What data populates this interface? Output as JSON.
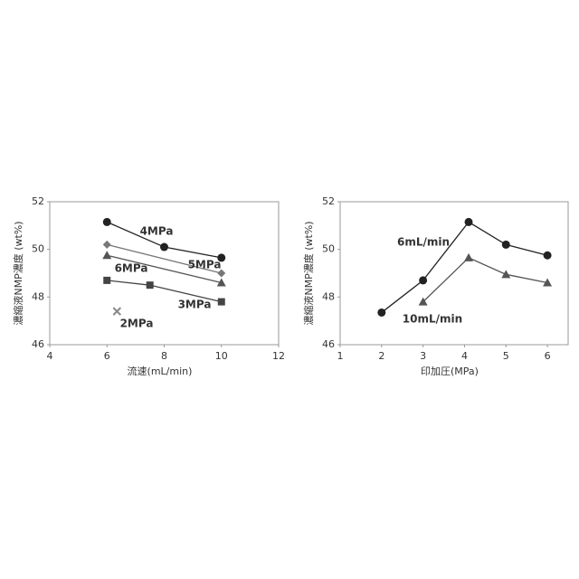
{
  "chart_data": [
    {
      "type": "line",
      "x_label": "流速(mL/min)",
      "y_label": "濃縮液NMP濃度 (wt%)",
      "xlim": [
        4,
        12
      ],
      "xticks": [
        4,
        6,
        8,
        10,
        12
      ],
      "ylim": [
        46,
        52
      ],
      "yticks": [
        46,
        48,
        50,
        52
      ],
      "series": [
        {
          "name": "4MPa",
          "color": "#222222",
          "marker": "circle",
          "x": [
            6,
            8,
            10
          ],
          "values": [
            51.15,
            50.1,
            49.65
          ]
        },
        {
          "name": "5MPa",
          "color": "#777777",
          "marker": "diamond",
          "x": [
            6,
            10
          ],
          "values": [
            50.2,
            49.0
          ]
        },
        {
          "name": "6MPa",
          "color": "#555555",
          "marker": "triangle",
          "x": [
            6,
            10
          ],
          "values": [
            49.75,
            48.6
          ]
        },
        {
          "name": "3MPa",
          "color": "#444444",
          "marker": "square",
          "x": [
            6,
            7.5,
            10
          ],
          "values": [
            48.7,
            48.5,
            47.8
          ]
        },
        {
          "name": "2MPa",
          "color": "#888888",
          "marker": "x",
          "x": [
            6.35
          ],
          "values": [
            47.4
          ]
        }
      ]
    },
    {
      "type": "line",
      "x_label": "印加圧(MPa)",
      "y_label": "濃縮液NMP濃度 (wt%)",
      "xlim": [
        1,
        6.5
      ],
      "xticks": [
        1,
        2,
        3,
        4,
        5,
        6
      ],
      "ylim": [
        46,
        52
      ],
      "yticks": [
        46,
        48,
        50,
        52
      ],
      "series": [
        {
          "name": "6mL/min",
          "color": "#222222",
          "marker": "circle",
          "x": [
            2,
            3,
            4.1,
            5,
            6
          ],
          "values": [
            47.35,
            48.7,
            51.15,
            50.2,
            49.75
          ]
        },
        {
          "name": "10mL/min",
          "color": "#555555",
          "marker": "triangle",
          "x": [
            3,
            4.1,
            5,
            6
          ],
          "values": [
            47.8,
            49.65,
            48.95,
            48.6
          ]
        }
      ]
    }
  ]
}
